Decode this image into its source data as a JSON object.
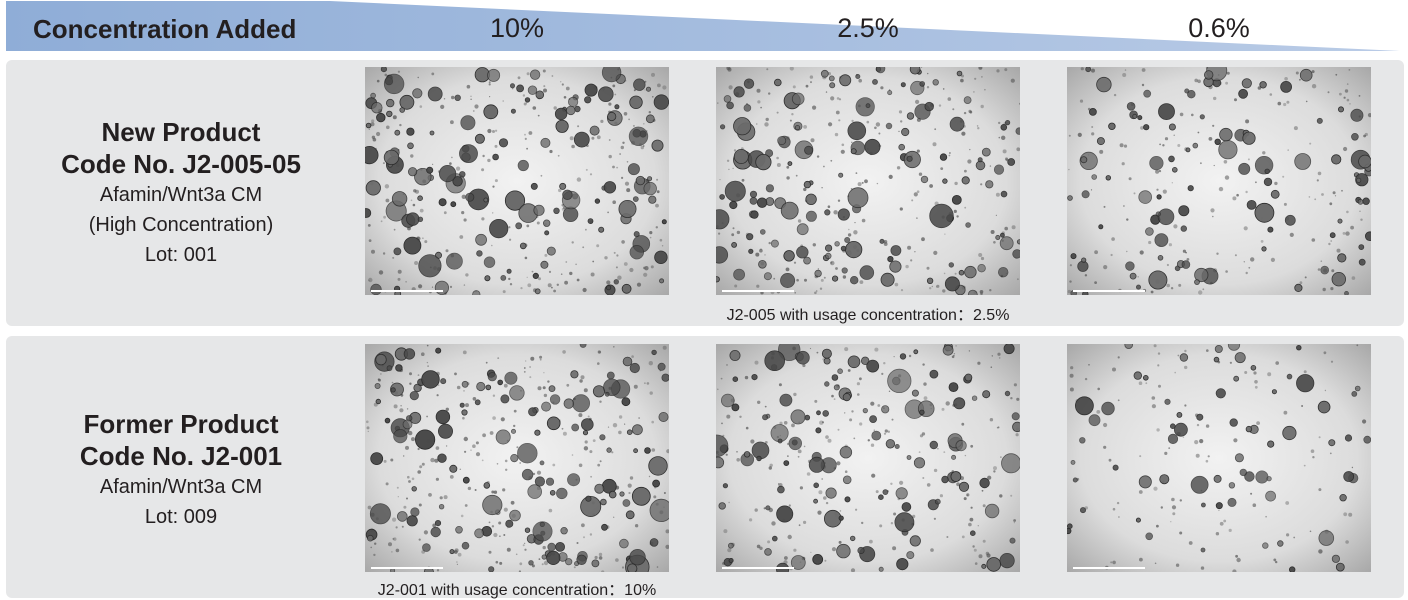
{
  "header": {
    "title": "Concentration Added",
    "concentrations": [
      "10%",
      "2.5%",
      "0.6%"
    ]
  },
  "rows": [
    {
      "name_line1": "New Product",
      "name_line2": "Code No. J2-005-05",
      "details": [
        "Afamin/Wnt3a CM",
        "(High Concentration)",
        "Lot: 001"
      ],
      "caption": "J2-005 with usage concentration：2.5%",
      "density": [
        1.0,
        0.95,
        0.7
      ]
    },
    {
      "name_line1": "Former Product",
      "name_line2": "Code No. J2-001",
      "details": [
        "Afamin/Wnt3a CM",
        "Lot: 009"
      ],
      "caption": "J2-001 with usage concentration：10%",
      "density": [
        1.0,
        0.85,
        0.45
      ]
    }
  ],
  "colors": {
    "band": "#9bb5da",
    "panel": "#e6e7e8",
    "text": "#231f20",
    "organoid": "#3a3a3a"
  }
}
